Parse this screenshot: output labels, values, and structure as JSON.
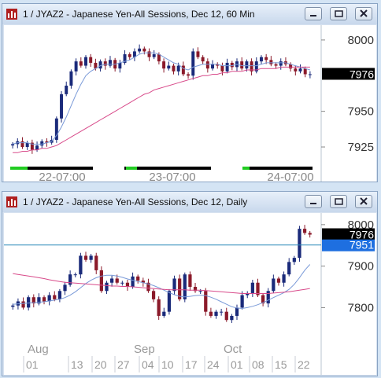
{
  "windows": [
    {
      "title": "1 / JYAZ2 - Japanese Yen-All Sessions, Dec 12, 60 Min",
      "buttons": [
        "minimize",
        "restore",
        "close"
      ]
    },
    {
      "title": "1 / JYAZ2 - Japanese Yen-All Sessions, Dec 12, Daily",
      "buttons": [
        "minimize",
        "restore",
        "close"
      ]
    }
  ],
  "colors": {
    "up": "#1a2a7a",
    "down": "#8b1a2a",
    "ma_fast": "#7a9ad8",
    "ma_slow": "#d84a8a",
    "session_bar": "#000000",
    "session_mark": "#22cc22",
    "last_tag": "#000000",
    "cursor_tag": "#1e6fe0",
    "cursor_line": "#2a8ab8"
  },
  "chart_data": [
    {
      "type": "candlestick",
      "title": "1 / JYAZ2 - Japanese Yen-All Sessions, Dec 12, 60 Min",
      "y_ticks": [
        8000,
        7950,
        7925
      ],
      "ylim": [
        7914,
        8006
      ],
      "x_tick_labels": [
        "22-07:00",
        "23-07:00",
        "24-07:00"
      ],
      "last_price_label": "7976",
      "close": [
        7927,
        7929,
        7925,
        7928,
        7923,
        7926,
        7929,
        7928,
        7930,
        7945,
        7962,
        7968,
        7978,
        7985,
        7982,
        7988,
        7984,
        7980,
        7985,
        7982,
        7986,
        7980,
        7984,
        7990,
        7988,
        7992,
        7994,
        7992,
        7988,
        7990,
        7985,
        7980,
        7982,
        7978,
        7982,
        7976,
        7975,
        7992,
        7988,
        7985,
        7980,
        7983,
        7982,
        7978,
        7984,
        7981,
        7985,
        7980,
        7985,
        7978,
        7985,
        7988,
        7986,
        7983,
        7982,
        7985,
        7983,
        7980,
        7978,
        7980,
        7976,
        7976
      ],
      "ma_fast": [
        7927,
        7928,
        7928,
        7928,
        7927,
        7927,
        7927,
        7928,
        7929,
        7933,
        7939,
        7946,
        7954,
        7962,
        7969,
        7975,
        7978,
        7980,
        7982,
        7983,
        7983,
        7983,
        7984,
        7985,
        7986,
        7988,
        7990,
        7991,
        7991,
        7991,
        7990,
        7988,
        7986,
        7984,
        7983,
        7980,
        7979,
        7981,
        7982,
        7983,
        7983,
        7983,
        7983,
        7982,
        7982,
        7982,
        7983,
        7982,
        7982,
        7982,
        7982,
        7983,
        7984,
        7984,
        7984,
        7984,
        7984,
        7983,
        7982,
        7981,
        7980,
        7979
      ],
      "ma_slow": [
        7921,
        7921,
        7922,
        7922,
        7923,
        7923,
        7924,
        7924,
        7925,
        7926,
        7928,
        7930,
        7932,
        7934,
        7936,
        7938,
        7940,
        7942,
        7944,
        7946,
        7948,
        7950,
        7952,
        7954,
        7956,
        7958,
        7960,
        7962,
        7963,
        7965,
        7966,
        7967,
        7968,
        7969,
        7970,
        7971,
        7972,
        7973,
        7974,
        7975,
        7975,
        7976,
        7976,
        7977,
        7977,
        7978,
        7978,
        7978,
        7979,
        7979,
        7979,
        7980,
        7980,
        7980,
        7980,
        7981,
        7981,
        7981,
        7981,
        7981,
        7981,
        7981
      ]
    },
    {
      "type": "candlestick",
      "title": "1 / JYAZ2 - Japanese Yen-All Sessions, Dec 12, Daily",
      "y_ticks": [
        8000,
        7900,
        7800
      ],
      "ylim": [
        7706,
        8013
      ],
      "x_month_labels": [
        "Aug",
        "Sep",
        "Oct"
      ],
      "x_tick_labels": [
        "01",
        "13",
        "20",
        "27",
        "04",
        "10",
        "17",
        "24",
        "01",
        "08",
        "15",
        "22"
      ],
      "last_price_label": "7976",
      "cursor_price_label": "7951",
      "close": [
        7805,
        7815,
        7800,
        7825,
        7810,
        7825,
        7815,
        7830,
        7820,
        7840,
        7855,
        7880,
        7880,
        7925,
        7915,
        7925,
        7890,
        7840,
        7860,
        7870,
        7860,
        7860,
        7850,
        7875,
        7865,
        7860,
        7840,
        7820,
        7780,
        7790,
        7840,
        7870,
        7820,
        7880,
        7850,
        7840,
        7840,
        7790,
        7780,
        7790,
        7790,
        7770,
        7780,
        7800,
        7830,
        7835,
        7860,
        7830,
        7810,
        7840,
        7870,
        7860,
        7880,
        7910,
        7920,
        7990,
        7980,
        7976
      ],
      "ma_fast": [
        7808,
        7809,
        7810,
        7811,
        7812,
        7813,
        7814,
        7816,
        7818,
        7820,
        7824,
        7830,
        7838,
        7848,
        7858,
        7866,
        7872,
        7876,
        7878,
        7878,
        7876,
        7873,
        7869,
        7866,
        7863,
        7860,
        7857,
        7853,
        7848,
        7842,
        7836,
        7831,
        7827,
        7826,
        7827,
        7829,
        7830,
        7829,
        7825,
        7820,
        7814,
        7808,
        7802,
        7799,
        7798,
        7800,
        7803,
        7807,
        7812,
        7818,
        7824,
        7830,
        7836,
        7844,
        7856,
        7872,
        7890,
        7904
      ],
      "ma_slow": [
        7882,
        7880,
        7878,
        7876,
        7874,
        7872,
        7870,
        7867,
        7865,
        7863,
        7861,
        7860,
        7859,
        7858,
        7857,
        7856,
        7855,
        7854,
        7853,
        7852,
        7852,
        7851,
        7851,
        7850,
        7849,
        7848,
        7847,
        7846,
        7845,
        7844,
        7843,
        7843,
        7843,
        7843,
        7842,
        7842,
        7842,
        7841,
        7840,
        7839,
        7838,
        7837,
        7836,
        7835,
        7834,
        7834,
        7834,
        7834,
        7834,
        7834,
        7835,
        7836,
        7837,
        7838,
        7840,
        7842,
        7844,
        7846
      ]
    }
  ]
}
